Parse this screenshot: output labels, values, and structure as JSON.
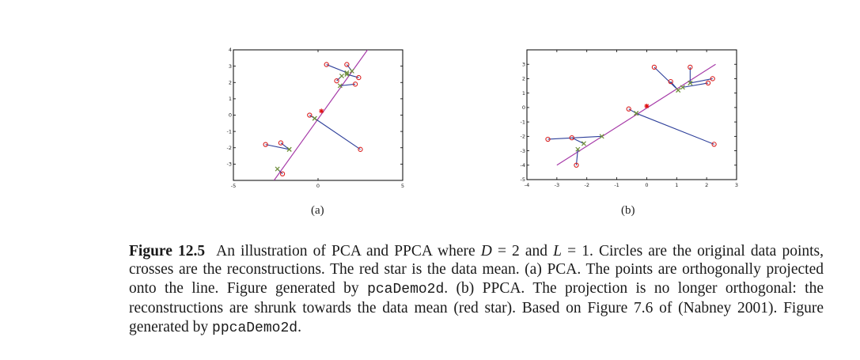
{
  "chart_data": [
    {
      "type": "scatter",
      "panel_label": "(a)",
      "title": "",
      "xlabel": "",
      "ylabel": "",
      "xlim": [
        -5,
        5
      ],
      "ylim": [
        -4,
        4
      ],
      "xticks": [
        "-5",
        "0",
        "5"
      ],
      "yticks": [
        "-3",
        "-2",
        "-1",
        "0",
        "1",
        "2",
        "3",
        "4"
      ],
      "principal_line": {
        "x": [
          -2.6,
          3.2
        ],
        "y": [
          -4.0,
          4.4
        ]
      },
      "mean_star": {
        "x": 0.2,
        "y": 0.25
      },
      "points": [
        {
          "data": [
            0.5,
            3.1
          ],
          "recon": [
            1.7,
            2.6
          ]
        },
        {
          "data": [
            1.7,
            3.1
          ],
          "recon": [
            2.0,
            2.7
          ]
        },
        {
          "data": [
            1.1,
            2.1
          ],
          "recon": [
            1.4,
            2.4
          ]
        },
        {
          "data": [
            2.4,
            2.3
          ],
          "recon": [
            1.7,
            2.5
          ]
        },
        {
          "data": [
            2.2,
            1.9
          ],
          "recon": [
            1.3,
            1.8
          ]
        },
        {
          "data": [
            -0.5,
            0.0
          ],
          "recon": [
            -0.2,
            -0.2
          ]
        },
        {
          "data": [
            2.5,
            -2.1
          ],
          "recon": [
            -0.2,
            -0.2
          ]
        },
        {
          "data": [
            -3.1,
            -1.8
          ],
          "recon": [
            -1.7,
            -2.1
          ]
        },
        {
          "data": [
            -2.2,
            -1.7
          ],
          "recon": [
            -1.7,
            -2.1
          ]
        },
        {
          "data": [
            -2.1,
            -3.6
          ],
          "recon": [
            -2.4,
            -3.3
          ]
        }
      ]
    },
    {
      "type": "scatter",
      "panel_label": "(b)",
      "title": "",
      "xlabel": "",
      "ylabel": "",
      "xlim": [
        -4,
        3
      ],
      "ylim": [
        -5,
        4
      ],
      "xticks": [
        "-4",
        "-3",
        "-2",
        "-1",
        "0",
        "1",
        "2",
        "3"
      ],
      "yticks": [
        "-5",
        "-4",
        "-3",
        "-2",
        "-1",
        "0",
        "1",
        "2",
        "3"
      ],
      "principal_line": {
        "x": [
          -3.0,
          2.3
        ],
        "y": [
          -4.0,
          3.0
        ]
      },
      "mean_star": {
        "x": 0.0,
        "y": 0.1
      },
      "points": [
        {
          "data": [
            0.25,
            2.8
          ],
          "recon": [
            1.05,
            1.2
          ]
        },
        {
          "data": [
            0.8,
            1.8
          ],
          "recon": [
            1.05,
            1.2
          ]
        },
        {
          "data": [
            1.45,
            2.8
          ],
          "recon": [
            1.45,
            1.7
          ]
        },
        {
          "data": [
            2.2,
            2.0
          ],
          "recon": [
            1.45,
            1.7
          ]
        },
        {
          "data": [
            2.05,
            1.7
          ],
          "recon": [
            1.2,
            1.4
          ]
        },
        {
          "data": [
            -0.6,
            -0.1
          ],
          "recon": [
            -0.35,
            -0.4
          ]
        },
        {
          "data": [
            2.25,
            -2.55
          ],
          "recon": [
            -0.35,
            -0.4
          ]
        },
        {
          "data": [
            -3.3,
            -2.2
          ],
          "recon": [
            -1.5,
            -2.0
          ]
        },
        {
          "data": [
            -2.5,
            -2.1
          ],
          "recon": [
            -2.1,
            -2.5
          ]
        },
        {
          "data": [
            -2.35,
            -4.0
          ],
          "recon": [
            -2.3,
            -2.9
          ]
        }
      ]
    }
  ],
  "caption": {
    "figure_number": "Figure 12.5",
    "t1": "An illustration of PCA and PPCA where ",
    "var_d": "D",
    "t2": " = 2 and ",
    "var_l": "L",
    "t3": " = 1. Circles are the original data points, crosses are the reconstructions. The red star is the data mean. (a) PCA. The points are orthogonally projected onto the line. Figure generated by ",
    "code1": "pcaDemo2d",
    "t4": ". (b) PPCA. The projection is no longer orthogonal: the reconstructions are shrunk towards the data mean (red star). Based on Figure 7.6 of (Nabney 2001). Figure generated by ",
    "code2": "ppcaDemo2d",
    "t5": "."
  },
  "colors": {
    "circle": "#d92020",
    "cross": "#6f8f3a",
    "projection": "#2d3f9a",
    "principal_line": "#a63aa8",
    "mean_star": "#e01010",
    "axis": "#000000"
  }
}
